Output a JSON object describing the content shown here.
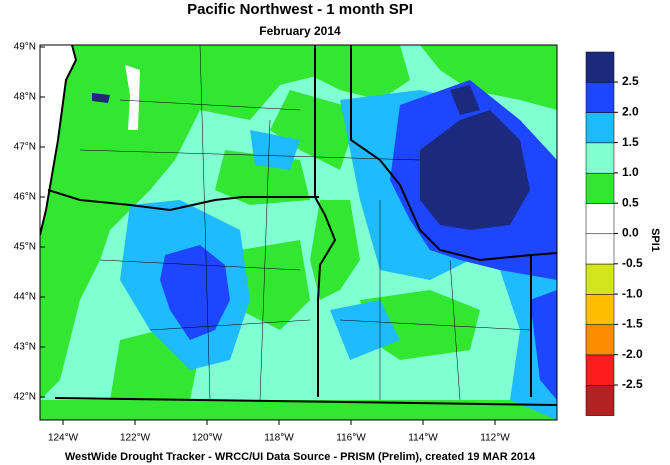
{
  "title": "Pacific Northwest - 1 month SPI",
  "subtitle": "February 2014",
  "map": {
    "lat_ticks": [
      {
        "value": 49,
        "label": "49°N"
      },
      {
        "value": 48,
        "label": "48°N"
      },
      {
        "value": 47,
        "label": "47°N"
      },
      {
        "value": 46,
        "label": "46°N"
      },
      {
        "value": 45,
        "label": "45°N"
      },
      {
        "value": 44,
        "label": "44°N"
      },
      {
        "value": 43,
        "label": "43°N"
      },
      {
        "value": 42,
        "label": "42°N"
      }
    ],
    "lon_ticks": [
      {
        "value": -124,
        "label": "124°W"
      },
      {
        "value": -122,
        "label": "122°W"
      },
      {
        "value": -120,
        "label": "120°W"
      },
      {
        "value": -118,
        "label": "118°W"
      },
      {
        "value": -116,
        "label": "116°W"
      },
      {
        "value": -114,
        "label": "114°W"
      },
      {
        "value": -112,
        "label": "112°W"
      }
    ]
  },
  "colorbar": {
    "label": "SPI1",
    "ticks": [
      2.5,
      {
        "value": 2,
        "label": "2.0"
      },
      1.5,
      {
        "value": 1,
        "label": "1.0"
      },
      0.5,
      {
        "value": 0,
        "label": "0.0"
      },
      -0.5,
      {
        "value": -1,
        "label": "-1.0"
      },
      -1.5,
      {
        "value": -2,
        "label": "-2.0"
      },
      -2.5
    ],
    "colors": [
      "#1c2a7e",
      "#1e46ff",
      "#1ebcff",
      "#80ffd2",
      "#32e632",
      "#ffffff",
      "#ffffff",
      "#d2e61e",
      "#ffbe00",
      "#ff8c00",
      "#ff1e1e",
      "#b22222"
    ]
  },
  "footer": "WestWide Drought Tracker - WRCC/UI  Data Source - PRISM (Prelim), created 19 MAR 2014"
}
